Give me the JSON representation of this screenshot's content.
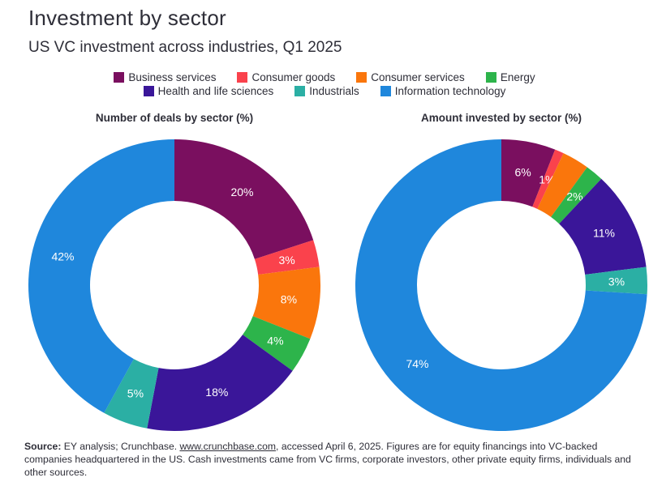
{
  "page": {
    "title": "Investment by sector",
    "subtitle": "US VC investment across industries, Q1 2025"
  },
  "colors": {
    "text": "#2e2e38",
    "slice_label": "#ffffff",
    "background": "#ffffff"
  },
  "legend": {
    "rows": [
      [
        0,
        1,
        2,
        3
      ],
      [
        4,
        5,
        6
      ]
    ],
    "items": [
      {
        "label": "Business services",
        "color": "#7a0f5f"
      },
      {
        "label": "Consumer goods",
        "color": "#fa424c"
      },
      {
        "label": "Consumer services",
        "color": "#fa760c"
      },
      {
        "label": "Energy",
        "color": "#2db44b"
      },
      {
        "label": "Health and life sciences",
        "color": "#3a1699"
      },
      {
        "label": "Industrials",
        "color": "#2bafa4"
      },
      {
        "label": "Information technology",
        "color": "#1f87dc"
      }
    ]
  },
  "chart_data": [
    {
      "type": "pie",
      "variant": "donut",
      "title": "Number of deals by sector (%)",
      "categories": [
        "Business services",
        "Consumer goods",
        "Consumer services",
        "Energy",
        "Health and life sciences",
        "Industrials",
        "Information technology"
      ],
      "values": [
        20,
        3,
        8,
        4,
        18,
        5,
        42
      ],
      "labels": [
        "20%",
        "3%",
        "8%",
        "4%",
        "18%",
        "5%",
        "42%"
      ],
      "colors": [
        "#7a0f5f",
        "#fa424c",
        "#fa760c",
        "#2db44b",
        "#3a1699",
        "#2bafa4",
        "#1f87dc"
      ],
      "start_angle_deg": 0,
      "direction": "clockwise",
      "inner_radius_ratio": 0.58,
      "legend_position": "top",
      "units": "percent"
    },
    {
      "type": "pie",
      "variant": "donut",
      "title": "Amount invested by sector (%)",
      "categories": [
        "Business services",
        "Consumer goods",
        "Consumer services",
        "Energy",
        "Health and life sciences",
        "Industrials",
        "Information technology"
      ],
      "values": [
        6,
        1,
        3,
        2,
        11,
        3,
        74
      ],
      "labels": [
        "6%",
        "1%",
        "",
        "2%",
        "11%",
        "3%",
        "74%"
      ],
      "colors": [
        "#7a0f5f",
        "#fa424c",
        "#fa760c",
        "#2db44b",
        "#3a1699",
        "#2bafa4",
        "#1f87dc"
      ],
      "start_angle_deg": 0,
      "direction": "clockwise",
      "inner_radius_ratio": 0.58,
      "legend_position": "top",
      "units": "percent"
    }
  ],
  "footer": {
    "source_label": "Source:",
    "text_before_link": " EY analysis; Crunchbase. ",
    "link": "www.crunchbase.com",
    "text_after_link": ", accessed April 6, 2025. Figures are for equity financings into VC-backed companies headquartered in the US. Cash investments came from VC firms, corporate investors, other private equity firms, individuals and other sources."
  }
}
